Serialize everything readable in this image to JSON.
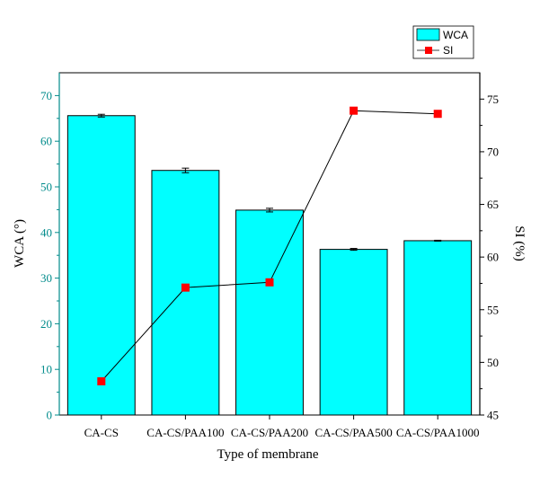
{
  "chart_data": {
    "type": "bar",
    "categories": [
      "CA-CS",
      "CA-CS/PAA100",
      "CA-CS/PAA200",
      "CA-CS/PAA500",
      "CA-CS/PAA1000"
    ],
    "xlabel": "Type of membrane",
    "series": [
      {
        "name": "WCA",
        "type": "bar",
        "axis": "left",
        "values": [
          65.6,
          53.6,
          44.9,
          36.3,
          38.2
        ],
        "errors": [
          0.3,
          0.5,
          0.4,
          0.2,
          0.1
        ],
        "color": "#00ffff"
      },
      {
        "name": "SI",
        "type": "line",
        "axis": "right",
        "values": [
          48.2,
          57.1,
          57.6,
          73.9,
          73.6
        ],
        "color": "#ff0000"
      }
    ],
    "y_left": {
      "label": "WCA (°)",
      "range": [
        0,
        75
      ],
      "ticks": [
        0,
        10,
        20,
        30,
        40,
        50,
        60,
        70
      ],
      "color": "#008b8b"
    },
    "y_right": {
      "label": "SI (%)",
      "range": [
        45,
        77.5
      ],
      "ticks": [
        45,
        50,
        55,
        60,
        65,
        70,
        75
      ],
      "color": "#000000"
    },
    "legend_position": "top-right",
    "grid": false
  }
}
